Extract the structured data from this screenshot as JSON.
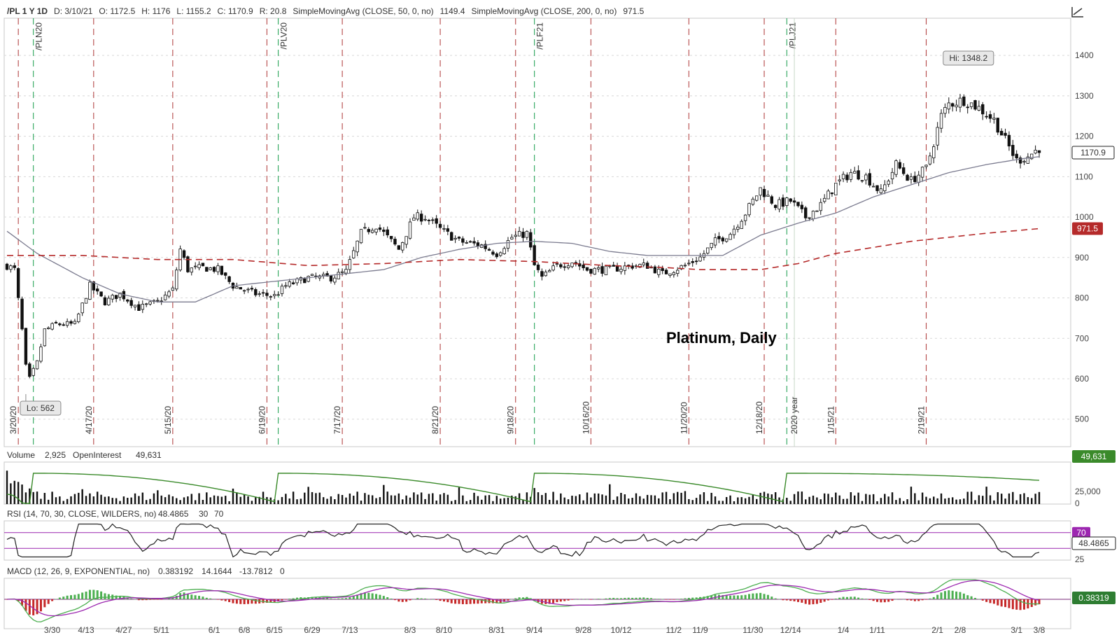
{
  "header": {
    "symbol": "/PL 1 Y 1D",
    "date": "D: 3/10/21",
    "open": "O: 1172.5",
    "high": "H: 1176",
    "low": "L: 1155.2",
    "close": "C: 1170.9",
    "range": "R: 20.8",
    "sma50_label": "SimpleMovingAvg (CLOSE, 50, 0, no)",
    "sma50_value": "1149.4",
    "sma200_label": "SimpleMovingAvg (CLOSE, 200, 0, no)",
    "sma200_value": "971.5"
  },
  "annotation": "Platinum, Daily",
  "colors": {
    "sma50": "#7b7b8f",
    "sma200": "#b52a2a",
    "candle": "#111111",
    "expiry_line": "#2aa55a",
    "event_line": "#b54747",
    "open_interest": "#3a8a2a",
    "rsi_band": "#9c27b0",
    "macd_pos": "#4caf50",
    "macd_neg": "#c62828",
    "macd_badge": "#2e7d32"
  },
  "chart_data": [
    {
      "type": "candlestick",
      "price_axis": {
        "ticks": [
          500,
          600,
          700,
          800,
          900,
          1000,
          1100,
          1200,
          1300,
          1400
        ],
        "ylim": [
          432,
          1492
        ]
      },
      "x_ticks": [
        "3/30",
        "4/13",
        "4/27",
        "5/11",
        "6/1",
        "6/8",
        "6/15",
        "6/29",
        "7/13",
        "8/3",
        "8/10",
        "8/31",
        "9/14",
        "9/28",
        "10/12",
        "11/2",
        "11/9",
        "11/30",
        "12/14",
        "1/4",
        "1/11",
        "2/1",
        "2/8",
        "3/1",
        "3/8"
      ],
      "x_tick_index": [
        12,
        21,
        31,
        41,
        55,
        63,
        71,
        81,
        91,
        107,
        116,
        130,
        140,
        153,
        163,
        177,
        184,
        198,
        208,
        222,
        231,
        247,
        253,
        268,
        274
      ],
      "event_lines": [
        {
          "label": "3/20/20",
          "index": 3
        },
        {
          "label": "4/17/20",
          "index": 23
        },
        {
          "label": "5/15/20",
          "index": 44
        },
        {
          "label": "6/19/20",
          "index": 69
        },
        {
          "label": "7/17/20",
          "index": 89
        },
        {
          "label": "8/21/20",
          "index": 115
        },
        {
          "label": "9/18/20",
          "index": 135
        },
        {
          "label": "10/16/20",
          "index": 155
        },
        {
          "label": "11/20/20",
          "index": 181
        },
        {
          "label": "12/18/20",
          "index": 201
        },
        {
          "label": "1/15/21",
          "index": 220
        },
        {
          "label": "2/19/21",
          "index": 244
        }
      ],
      "expiry_lines": [
        {
          "label": "/PLN20",
          "index": 7
        },
        {
          "label": "/PLV20",
          "index": 72
        },
        {
          "label": "/PLF21",
          "index": 140
        },
        {
          "label": "/PLJ21",
          "index": 207
        }
      ],
      "year_marker": {
        "label": "2020 year",
        "index": 209
      },
      "hi": {
        "label": "Hi: 1348.2",
        "value": 1348.2,
        "index": 250
      },
      "lo": {
        "label": "Lo: 562",
        "value": 562,
        "index": 5
      },
      "last_price": "1170.9",
      "sma200_last": "971.5",
      "anchors": [
        [
          0,
          880
        ],
        [
          2,
          870
        ],
        [
          4,
          720
        ],
        [
          5,
          630
        ],
        [
          6,
          600
        ],
        [
          8,
          640
        ],
        [
          10,
          720
        ],
        [
          13,
          735
        ],
        [
          18,
          735
        ],
        [
          22,
          830
        ],
        [
          26,
          790
        ],
        [
          30,
          810
        ],
        [
          35,
          775
        ],
        [
          40,
          790
        ],
        [
          44,
          820
        ],
        [
          46,
          920
        ],
        [
          48,
          870
        ],
        [
          52,
          875
        ],
        [
          56,
          870
        ],
        [
          60,
          830
        ],
        [
          66,
          810
        ],
        [
          71,
          805
        ],
        [
          74,
          830
        ],
        [
          80,
          850
        ],
        [
          86,
          850
        ],
        [
          90,
          865
        ],
        [
          94,
          960
        ],
        [
          98,
          980
        ],
        [
          104,
          920
        ],
        [
          108,
          1000
        ],
        [
          111,
          1000
        ],
        [
          115,
          970
        ],
        [
          120,
          940
        ],
        [
          126,
          930
        ],
        [
          130,
          910
        ],
        [
          134,
          950
        ],
        [
          138,
          960
        ],
        [
          140,
          880
        ],
        [
          142,
          850
        ],
        [
          146,
          880
        ],
        [
          150,
          890
        ],
        [
          154,
          870
        ],
        [
          160,
          870
        ],
        [
          166,
          880
        ],
        [
          170,
          880
        ],
        [
          174,
          860
        ],
        [
          180,
          880
        ],
        [
          184,
          900
        ],
        [
          188,
          940
        ],
        [
          192,
          960
        ],
        [
          196,
          1010
        ],
        [
          200,
          1070
        ],
        [
          204,
          1030
        ],
        [
          208,
          1040
        ],
        [
          212,
          1000
        ],
        [
          216,
          1030
        ],
        [
          220,
          1080
        ],
        [
          224,
          1110
        ],
        [
          228,
          1100
        ],
        [
          232,
          1060
        ],
        [
          236,
          1130
        ],
        [
          240,
          1090
        ],
        [
          244,
          1120
        ],
        [
          248,
          1250
        ],
        [
          250,
          1280
        ],
        [
          254,
          1290
        ],
        [
          258,
          1270
        ],
        [
          262,
          1240
        ],
        [
          265,
          1190
        ],
        [
          268,
          1140
        ],
        [
          271,
          1150
        ],
        [
          274,
          1170.9
        ]
      ],
      "sma50_anchors": [
        [
          0,
          965
        ],
        [
          8,
          910
        ],
        [
          20,
          850
        ],
        [
          30,
          810
        ],
        [
          40,
          790
        ],
        [
          50,
          790
        ],
        [
          60,
          830
        ],
        [
          70,
          840
        ],
        [
          80,
          850
        ],
        [
          90,
          860
        ],
        [
          100,
          870
        ],
        [
          110,
          900
        ],
        [
          120,
          920
        ],
        [
          130,
          935
        ],
        [
          140,
          940
        ],
        [
          150,
          935
        ],
        [
          160,
          915
        ],
        [
          170,
          905
        ],
        [
          180,
          905
        ],
        [
          190,
          905
        ],
        [
          200,
          955
        ],
        [
          210,
          985
        ],
        [
          220,
          1010
        ],
        [
          230,
          1050
        ],
        [
          240,
          1080
        ],
        [
          250,
          1110
        ],
        [
          260,
          1130
        ],
        [
          270,
          1145
        ],
        [
          274,
          1149.4
        ]
      ],
      "sma200_anchors": [
        [
          0,
          905
        ],
        [
          20,
          905
        ],
        [
          40,
          895
        ],
        [
          60,
          895
        ],
        [
          80,
          880
        ],
        [
          100,
          885
        ],
        [
          120,
          895
        ],
        [
          140,
          890
        ],
        [
          160,
          880
        ],
        [
          175,
          875
        ],
        [
          184,
          870
        ],
        [
          200,
          870
        ],
        [
          210,
          885
        ],
        [
          220,
          910
        ],
        [
          230,
          925
        ],
        [
          240,
          940
        ],
        [
          250,
          950
        ],
        [
          260,
          960
        ],
        [
          274,
          971.5
        ]
      ]
    },
    {
      "type": "bar",
      "header": {
        "label": "Volume",
        "volume": "2,925",
        "oi_label": "OpenInterest",
        "oi": "49,631"
      },
      "axis_ticks": [
        "25,000",
        "0"
      ],
      "oi_badge": "49,631"
    },
    {
      "type": "line",
      "header": {
        "label": "RSI (14, 70, 30, CLOSE, WILDERS, no)",
        "value": "48.4865",
        "low": "30",
        "high": "70"
      },
      "ylim": [
        0,
        100
      ],
      "bands": [
        30,
        70
      ],
      "axis_ticks": [
        "70",
        "25"
      ],
      "value_badge": "48.4865"
    },
    {
      "type": "line",
      "header": {
        "label": "MACD (12, 26, 9, EXPONENTIAL, no)",
        "value": "0.383192",
        "avg": "14.1644",
        "diff": "-13.7812",
        "zero": "0"
      },
      "value_badge": "0.38319"
    }
  ]
}
